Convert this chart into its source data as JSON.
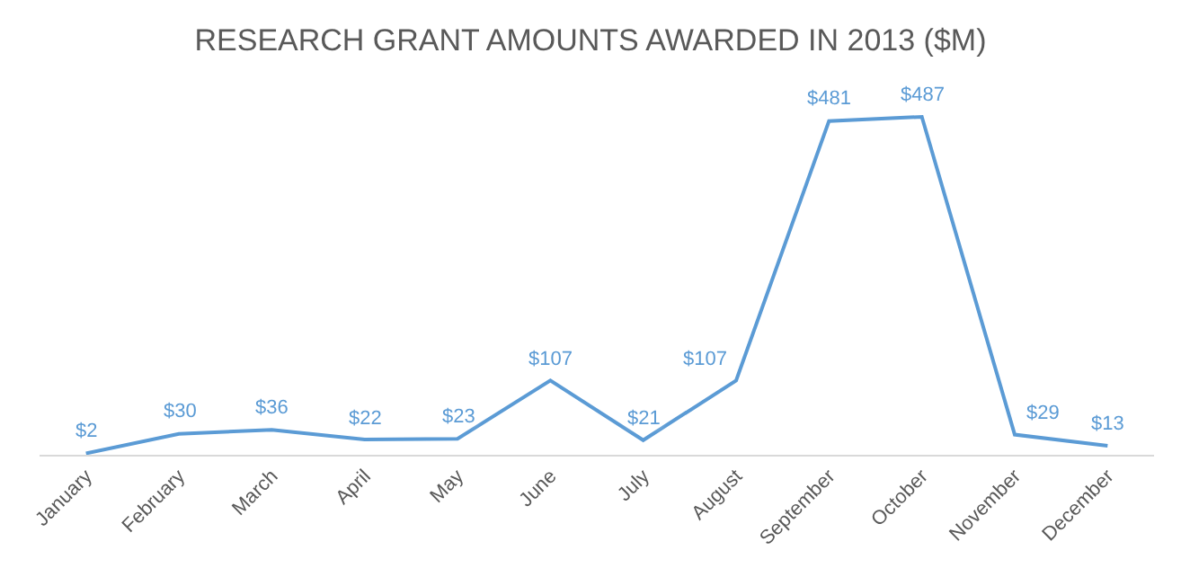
{
  "chart_data": {
    "type": "line",
    "title": "RESEARCH GRANT AMOUNTS AWARDED IN 2013 ($M)",
    "categories": [
      "January",
      "February",
      "March",
      "April",
      "May",
      "June",
      "July",
      "August",
      "September",
      "October",
      "November",
      "December"
    ],
    "series": [
      {
        "color": "#5b9bd5",
        "values": [
          2,
          30,
          36,
          22,
          23,
          107,
          21,
          107,
          481,
          487,
          29,
          13
        ],
        "value_labels": [
          "$2",
          "$30",
          "$36",
          "$22",
          "$23",
          "$107",
          "$21",
          "$107",
          "$481",
          "$487",
          "$29",
          "$13"
        ]
      }
    ],
    "legend": false,
    "line_style": "solid",
    "tick_labels": "x"
  }
}
